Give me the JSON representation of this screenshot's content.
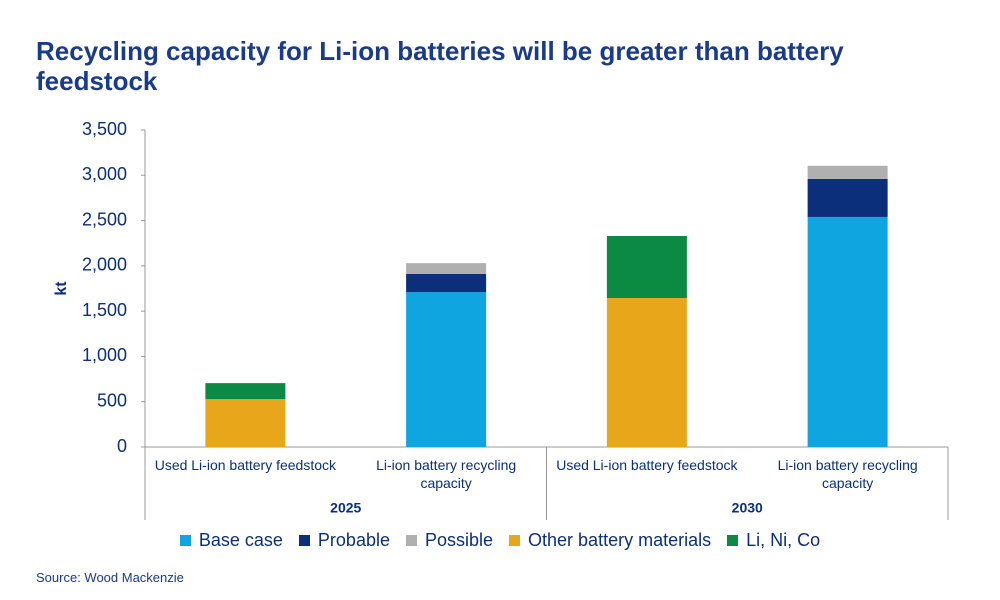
{
  "chart_data": {
    "type": "stacked_bar",
    "title": "Recycling capacity for Li-ion batteries will be greater than battery feedstock",
    "y_label": "kt",
    "source": "Source: Wood Mackenzie",
    "categories": [
      "Used Li-ion battery feedstock",
      "Li-ion battery recycling capacity",
      "Used Li-ion battery feedstock",
      "Li-ion battery recycling capacity"
    ],
    "groups": [
      "2025",
      "2030"
    ],
    "series": [
      {
        "name": "Base case",
        "color": "#0ea5e0",
        "values": [
          null,
          1710,
          null,
          2540
        ]
      },
      {
        "name": "Probable",
        "color": "#0b2f7a",
        "values": [
          null,
          200,
          null,
          420
        ]
      },
      {
        "name": "Possible",
        "color": "#b0b0b0",
        "values": [
          null,
          120,
          null,
          145
        ]
      },
      {
        "name": "Other battery materials",
        "color": "#e8a71b",
        "values": [
          530,
          null,
          1645,
          null
        ]
      },
      {
        "name": "Li, Ni, Co",
        "color": "#0a8a43",
        "values": [
          175,
          null,
          685,
          null
        ]
      }
    ],
    "ylim": [
      0,
      3500
    ],
    "yticks": [
      0,
      500,
      {
        "value": 1000,
        "label": "1,000"
      },
      {
        "value": 1500,
        "label": "1,500"
      },
      {
        "value": 2000,
        "label": "2,000"
      },
      {
        "value": 2500,
        "label": "2,500"
      },
      {
        "value": 3000,
        "label": "3,000"
      },
      {
        "value": 3500,
        "label": "3,500"
      }
    ],
    "legend": "bottom"
  }
}
